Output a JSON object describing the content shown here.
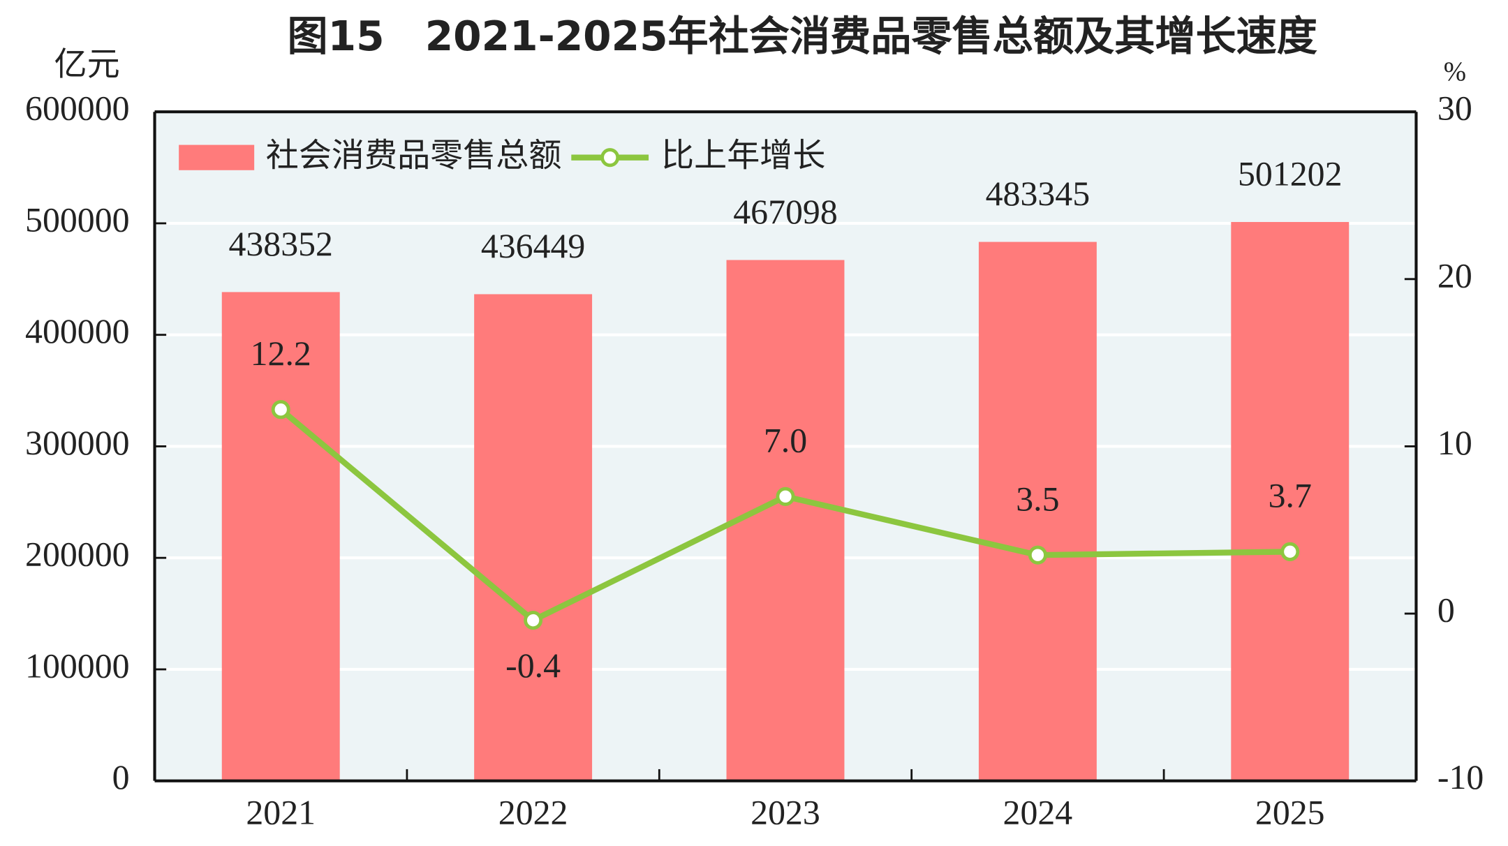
{
  "chart_data": {
    "type": "bar-line",
    "title": "图15　2021-2025年社会消费品零售总额及其增长速度",
    "y_label": "亿元",
    "y2_label": "%",
    "categories": [
      "2021",
      "2022",
      "2023",
      "2024",
      "2025"
    ],
    "series": [
      {
        "name": "社会消费品零售总额",
        "type": "bar",
        "color": "#ff7b7b",
        "values": [
          438352,
          436449,
          467098,
          483345,
          501202
        ]
      },
      {
        "name": "比上年增长",
        "type": "line",
        "axis": "y2",
        "color": "#8cc63f",
        "values": [
          12.2,
          -0.4,
          7.0,
          3.5,
          3.7
        ],
        "value_labels": [
          "12.2",
          "-0.4",
          "7.0",
          "3.5",
          "3.7"
        ]
      }
    ],
    "ylim": [
      0,
      600000
    ],
    "yticks": [
      0,
      100000,
      200000,
      300000,
      400000,
      500000,
      600000
    ],
    "y2lim": [
      -10,
      30
    ],
    "y2ticks": [
      -10,
      0,
      10,
      20,
      30
    ],
    "grid": true,
    "legend": "top-left"
  }
}
